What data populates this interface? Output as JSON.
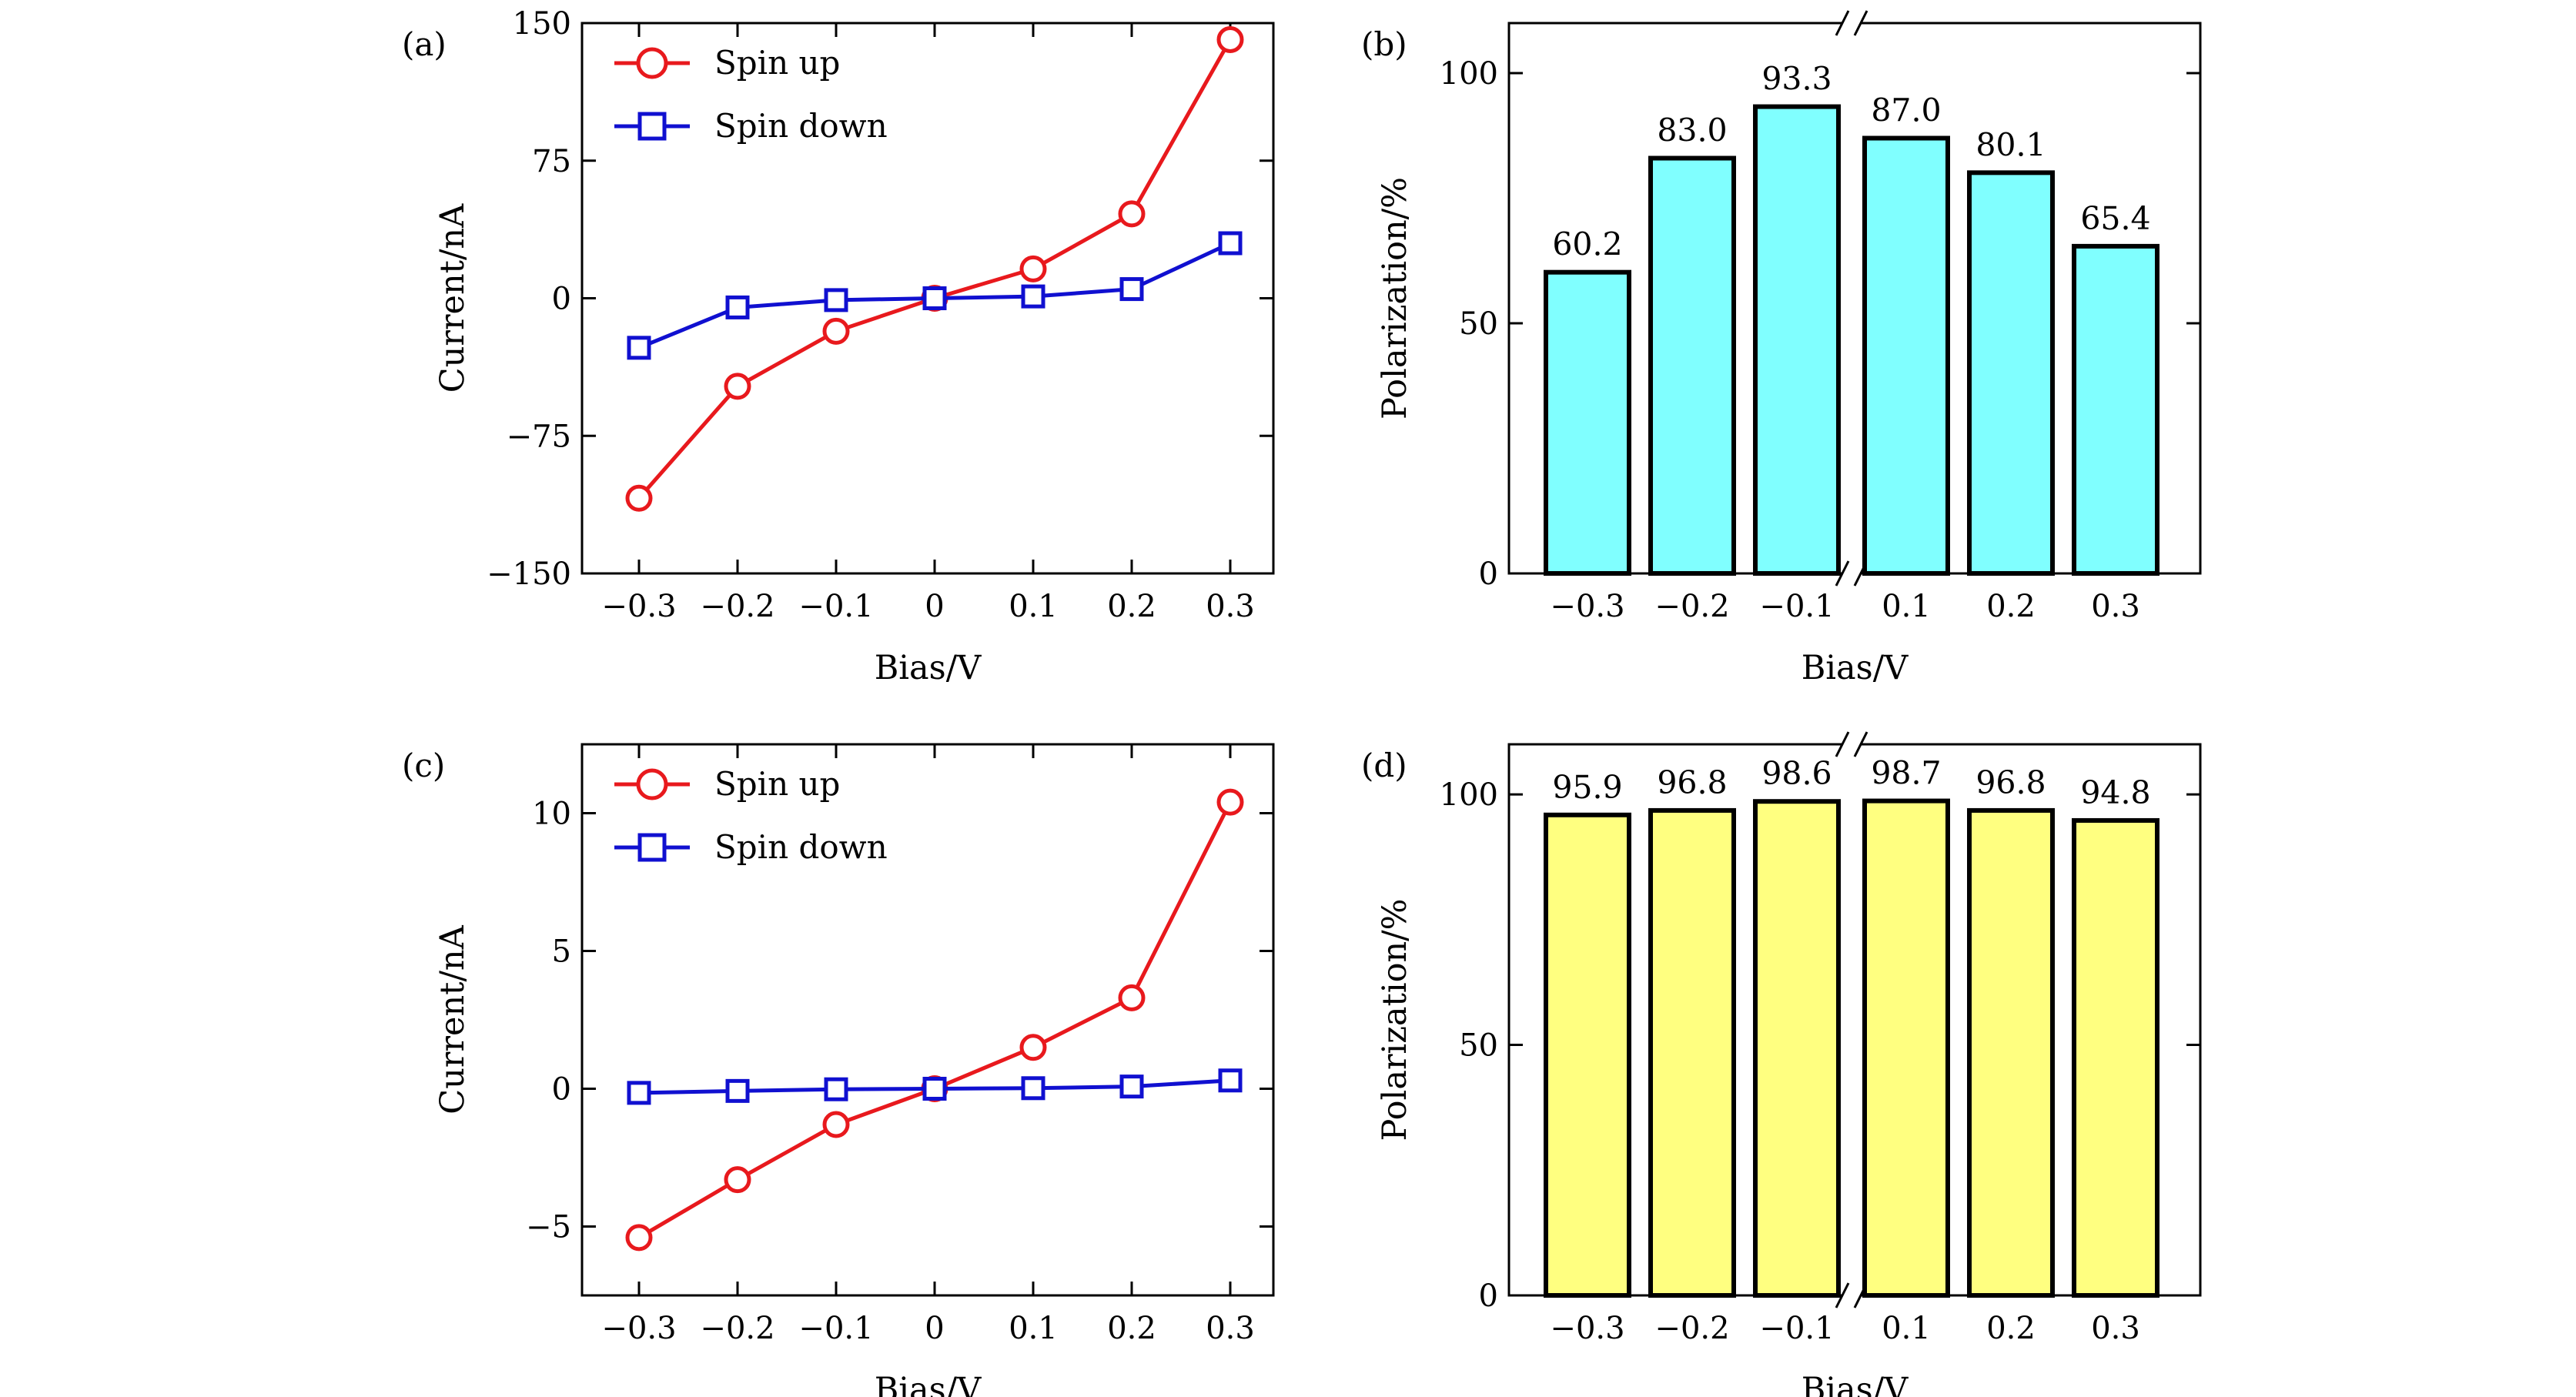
{
  "chart_data": [
    {
      "panel": "(a)",
      "type": "line",
      "xlabel": "Bias/V",
      "ylabel": "Current/nA",
      "x": [
        -0.3,
        -0.2,
        -0.1,
        0,
        0.1,
        0.2,
        0.3
      ],
      "x_tick_labels": [
        "−0.3",
        "−0.2",
        "−0.1",
        "0",
        "0.1",
        "0.2",
        "0.3"
      ],
      "ylim": [
        -150,
        150
      ],
      "y_ticks": [
        -150,
        -75,
        0,
        75,
        150
      ],
      "y_tick_labels": [
        "−150",
        "−75",
        "0",
        "75",
        "150"
      ],
      "legend_position": "top-left",
      "series": [
        {
          "name": "Spin up",
          "color": "#e8191d",
          "marker": "circle",
          "values": [
            -109,
            -48,
            -18,
            0,
            16,
            46,
            141
          ]
        },
        {
          "name": "Spin down",
          "color": "#1010d0",
          "marker": "square",
          "values": [
            -27,
            -5,
            -1,
            0,
            1,
            5,
            30
          ]
        }
      ]
    },
    {
      "panel": "(b)",
      "type": "bar",
      "xlabel": "Bias/V",
      "ylabel": "Polarization/%",
      "categories": [
        "−0.3",
        "−0.2",
        "−0.1",
        "0.1",
        "0.2",
        "0.3"
      ],
      "values": [
        60.2,
        83.0,
        93.3,
        87.0,
        80.1,
        65.4
      ],
      "value_labels": [
        "60.2",
        "83.0",
        "93.3",
        "87.0",
        "80.1",
        "65.4"
      ],
      "ylim": [
        0,
        110
      ],
      "y_ticks": [
        0,
        50,
        100
      ],
      "y_tick_labels": [
        "0",
        "50",
        "100"
      ],
      "bar_color": "#80ffff",
      "axis_break_between": [
        "−0.1",
        "0.1"
      ]
    },
    {
      "panel": "(c)",
      "type": "line",
      "xlabel": "Bias/V",
      "ylabel": "Current/nA",
      "x": [
        -0.3,
        -0.2,
        -0.1,
        0,
        0.1,
        0.2,
        0.3
      ],
      "x_tick_labels": [
        "−0.3",
        "−0.2",
        "−0.1",
        "0",
        "0.1",
        "0.2",
        "0.3"
      ],
      "ylim": [
        -7.5,
        12.5
      ],
      "y_ticks": [
        -5,
        0,
        5,
        10
      ],
      "y_tick_labels": [
        "−5",
        "0",
        "5",
        "10"
      ],
      "legend_position": "top-left",
      "series": [
        {
          "name": "Spin up",
          "color": "#e8191d",
          "marker": "circle",
          "values": [
            -5.4,
            -3.3,
            -1.3,
            0,
            1.5,
            3.3,
            10.4
          ]
        },
        {
          "name": "Spin down",
          "color": "#1010d0",
          "marker": "square",
          "values": [
            -0.15,
            -0.08,
            -0.02,
            0,
            0.02,
            0.08,
            0.3
          ]
        }
      ]
    },
    {
      "panel": "(d)",
      "type": "bar",
      "xlabel": "Bias/V",
      "ylabel": "Polarization/%",
      "categories": [
        "−0.3",
        "−0.2",
        "−0.1",
        "0.1",
        "0.2",
        "0.3"
      ],
      "values": [
        95.9,
        96.8,
        98.6,
        98.7,
        96.8,
        94.8
      ],
      "value_labels": [
        "95.9",
        "96.8",
        "98.6",
        "98.7",
        "96.8",
        "94.8"
      ],
      "ylim": [
        0,
        110
      ],
      "y_ticks": [
        0,
        50,
        100
      ],
      "y_tick_labels": [
        "0",
        "50",
        "100"
      ],
      "bar_color": "#ffff80",
      "axis_break_between": [
        "−0.1",
        "0.1"
      ]
    }
  ]
}
